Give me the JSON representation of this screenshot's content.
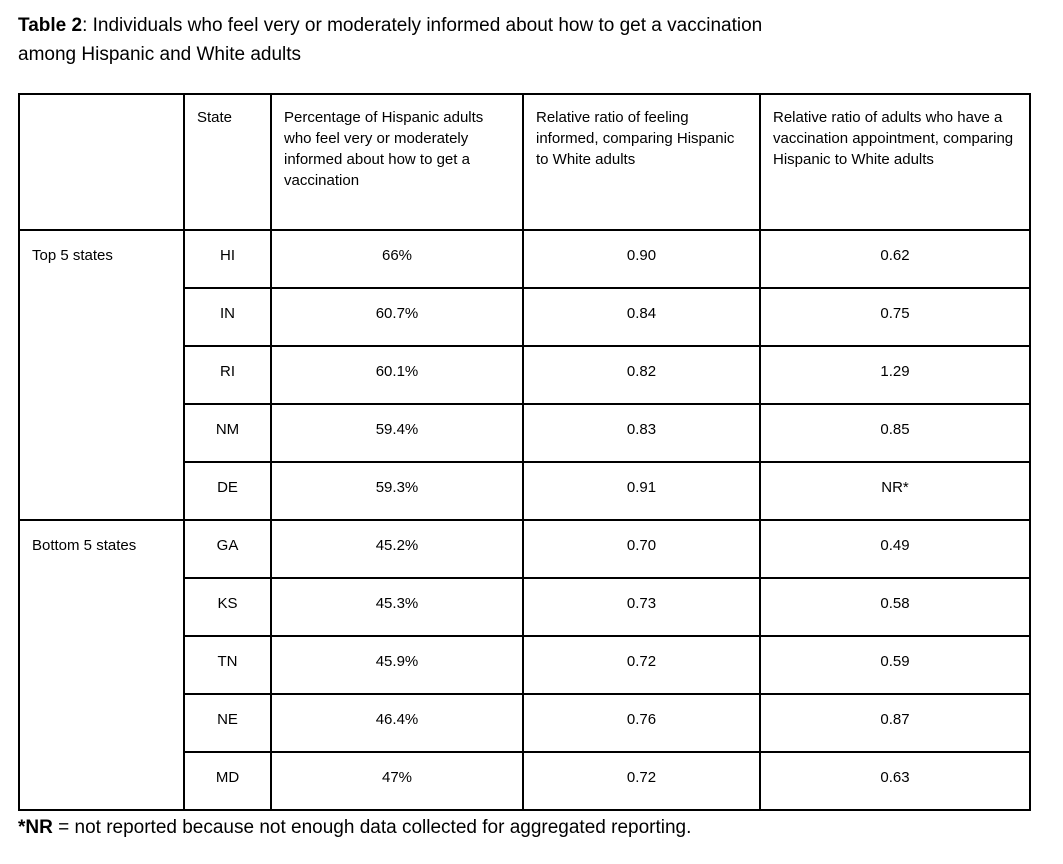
{
  "title": {
    "bold_label": "Table 2",
    "line1_rest": ": Individuals who feel very or moderately informed about how to get a vaccination",
    "line2": "among Hispanic and White adults"
  },
  "table": {
    "columns": [
      "",
      "State",
      "Percentage of Hispanic adults who feel very or moderately informed about how to get a vaccination",
      "Relative ratio of feeling informed, comparing Hispanic to White adults",
      "Relative ratio of adults who have a vaccination appointment, comparing Hispanic to White adults"
    ],
    "groups": [
      {
        "label": "Top 5 states",
        "rows": [
          {
            "state": "HI",
            "percent_informed": "66%",
            "ratio_informed": "0.90",
            "ratio_appointment": "0.62"
          },
          {
            "state": "IN",
            "percent_informed": "60.7%",
            "ratio_informed": "0.84",
            "ratio_appointment": "0.75"
          },
          {
            "state": "RI",
            "percent_informed": "60.1%",
            "ratio_informed": "0.82",
            "ratio_appointment": "1.29"
          },
          {
            "state": "NM",
            "percent_informed": "59.4%",
            "ratio_informed": "0.83",
            "ratio_appointment": "0.85"
          },
          {
            "state": "DE",
            "percent_informed": "59.3%",
            "ratio_informed": "0.91",
            "ratio_appointment": "NR*"
          }
        ]
      },
      {
        "label": "Bottom 5 states",
        "rows": [
          {
            "state": "GA",
            "percent_informed": "45.2%",
            "ratio_informed": "0.70",
            "ratio_appointment": "0.49"
          },
          {
            "state": "KS",
            "percent_informed": "45.3%",
            "ratio_informed": "0.73",
            "ratio_appointment": "0.58"
          },
          {
            "state": "TN",
            "percent_informed": "45.9%",
            "ratio_informed": "0.72",
            "ratio_appointment": "0.59"
          },
          {
            "state": "NE",
            "percent_informed": "46.4%",
            "ratio_informed": "0.76",
            "ratio_appointment": "0.87"
          },
          {
            "state": "MD",
            "percent_informed": "47%",
            "ratio_informed": "0.72",
            "ratio_appointment": "0.63"
          }
        ]
      }
    ]
  },
  "footnote": {
    "bold_prefix": "*NR",
    "rest": " = not reported because not enough data collected for aggregated reporting."
  },
  "colors": {
    "border": "#000000",
    "text": "#000000",
    "background": "#ffffff"
  }
}
